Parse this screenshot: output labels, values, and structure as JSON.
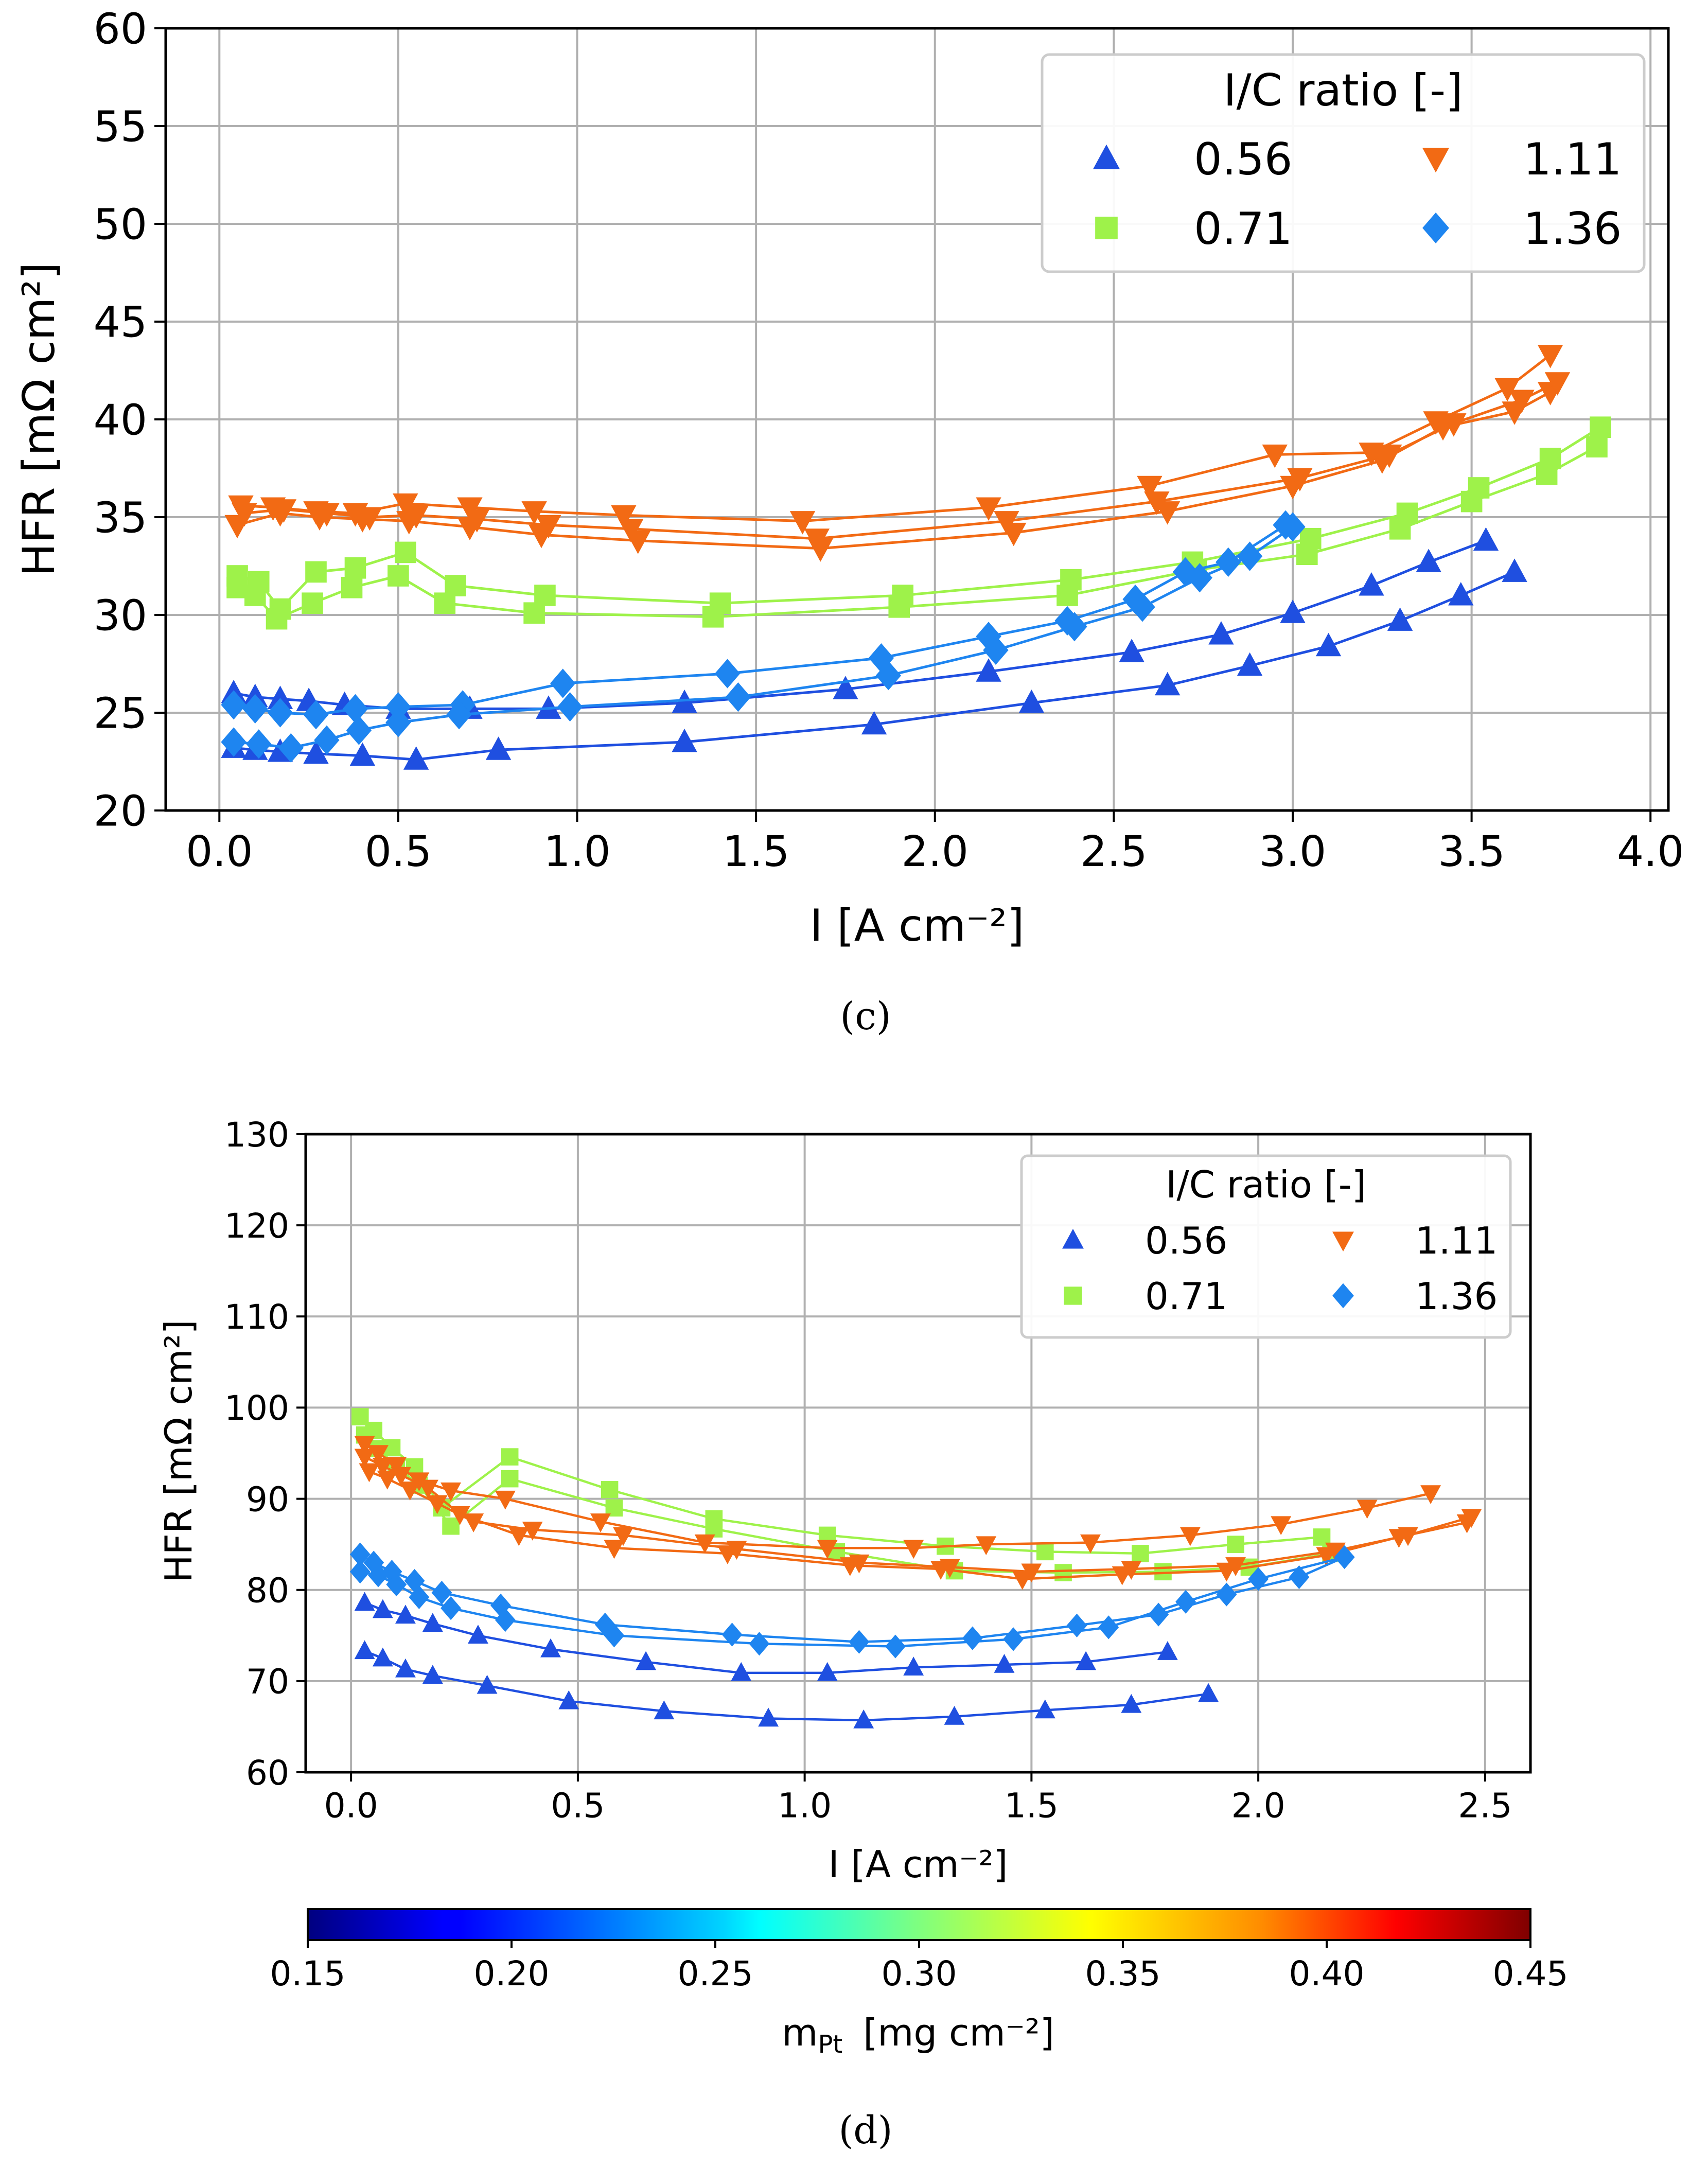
{
  "chart_data": [
    {
      "type": "line",
      "caption": "(c)",
      "xlabel": "I   [A cm⁻²]",
      "ylabel": "HFR   [mΩ cm²]",
      "xlim": [
        -0.15,
        4.05
      ],
      "ylim": [
        20,
        60
      ],
      "xticks": [
        "0.0",
        "0.5",
        "1.0",
        "1.5",
        "2.0",
        "2.5",
        "3.0",
        "3.5",
        "4.0"
      ],
      "yticks": [
        "20",
        "25",
        "30",
        "35",
        "40",
        "45",
        "50",
        "55",
        "60"
      ],
      "grid": true,
      "legend": {
        "title": "I/C ratio [-]",
        "placement": "top-right",
        "entries": [
          {
            "label": "0.56",
            "marker": "triangle-up",
            "color": "#1f4fe0"
          },
          {
            "label": "0.71",
            "marker": "square",
            "color": "#9ef24a"
          },
          {
            "label": "1.11",
            "marker": "triangle-down",
            "color": "#f26a14"
          },
          {
            "label": "1.36",
            "marker": "diamond",
            "color": "#1e85f0"
          }
        ]
      },
      "series": [
        {
          "name": "0.56",
          "marker": "triangle-up",
          "color": "#1f4fe0",
          "x": [
            0.04,
            0.1,
            0.17,
            0.25,
            0.35,
            0.5,
            0.7,
            0.92,
            1.3,
            1.75,
            2.15,
            2.55,
            2.8,
            3.0,
            3.22,
            3.38,
            3.54
          ],
          "y": [
            26.0,
            25.8,
            25.7,
            25.6,
            25.4,
            25.2,
            25.2,
            25.2,
            25.5,
            26.2,
            27.1,
            28.1,
            29.0,
            30.1,
            31.5,
            32.7,
            33.8
          ]
        },
        {
          "name": "0.56",
          "marker": "triangle-up",
          "color": "#1f4fe0",
          "x": [
            0.04,
            0.1,
            0.17,
            0.27,
            0.4,
            0.55,
            0.78,
            1.3,
            1.83,
            2.27,
            2.65,
            2.88,
            3.1,
            3.3,
            3.47,
            3.62
          ],
          "y": [
            23.2,
            23.1,
            23.0,
            22.9,
            22.8,
            22.6,
            23.1,
            23.5,
            24.4,
            25.5,
            26.4,
            27.4,
            28.4,
            29.7,
            31.0,
            32.2
          ]
        },
        {
          "name": "0.71",
          "marker": "square",
          "color": "#9ef24a",
          "x": [
            0.05,
            0.11,
            0.17,
            0.27,
            0.38,
            0.52,
            0.66,
            0.91,
            1.4,
            1.91,
            2.38,
            2.72,
            3.05,
            3.32,
            3.52,
            3.72,
            3.86
          ],
          "y": [
            32.0,
            31.7,
            30.3,
            32.2,
            32.4,
            33.2,
            31.5,
            31.0,
            30.6,
            31.0,
            31.8,
            32.7,
            33.9,
            35.2,
            36.5,
            38.0,
            39.6
          ]
        },
        {
          "name": "0.71",
          "marker": "square",
          "color": "#9ef24a",
          "x": [
            0.05,
            0.1,
            0.16,
            0.26,
            0.37,
            0.5,
            0.63,
            0.88,
            1.38,
            1.9,
            2.37,
            2.73,
            3.04,
            3.3,
            3.5,
            3.71,
            3.85
          ],
          "y": [
            31.4,
            31.0,
            29.8,
            30.6,
            31.4,
            32.0,
            30.6,
            30.1,
            29.9,
            30.4,
            31.0,
            32.3,
            33.1,
            34.4,
            35.8,
            37.2,
            38.6
          ]
        },
        {
          "name": "1.11",
          "marker": "triangle-down",
          "color": "#f26a14",
          "x": [
            0.06,
            0.15,
            0.27,
            0.38,
            0.52,
            0.7,
            0.88,
            1.13,
            1.63,
            2.15,
            2.6,
            2.95,
            3.22,
            3.4,
            3.6,
            3.72
          ],
          "y": [
            35.6,
            35.5,
            35.3,
            35.2,
            35.7,
            35.5,
            35.3,
            35.1,
            34.8,
            35.5,
            36.6,
            38.2,
            38.3,
            39.9,
            41.6,
            43.3
          ]
        },
        {
          "name": "1.11",
          "marker": "triangle-down",
          "color": "#f26a14",
          "x": [
            0.05,
            0.17,
            0.28,
            0.4,
            0.53,
            0.7,
            0.9,
            1.17,
            1.68,
            2.22,
            2.65,
            3.0,
            3.25,
            3.42,
            3.62,
            3.72
          ],
          "y": [
            34.6,
            35.2,
            35.0,
            34.9,
            34.8,
            34.5,
            34.1,
            33.8,
            33.4,
            34.2,
            35.3,
            36.6,
            37.9,
            39.6,
            40.4,
            41.4
          ]
        },
        {
          "name": "1.11",
          "marker": "triangle-down",
          "color": "#f26a14",
          "x": [
            0.07,
            0.18,
            0.3,
            0.42,
            0.55,
            0.72,
            0.92,
            1.15,
            1.67,
            2.2,
            2.62,
            3.02,
            3.27,
            3.45,
            3.64,
            3.74
          ],
          "y": [
            35.2,
            35.4,
            35.2,
            35.0,
            35.1,
            34.9,
            34.6,
            34.4,
            33.9,
            34.8,
            35.8,
            37.0,
            38.2,
            39.8,
            41.0,
            41.9
          ]
        },
        {
          "name": "1.36",
          "marker": "diamond",
          "color": "#1e85f0",
          "x": [
            0.04,
            0.1,
            0.17,
            0.27,
            0.38,
            0.5,
            0.68,
            0.96,
            1.42,
            1.85,
            2.15,
            2.37,
            2.56,
            2.7,
            2.82,
            2.98
          ],
          "y": [
            25.4,
            25.2,
            25.0,
            24.9,
            25.2,
            25.3,
            25.4,
            26.5,
            27.0,
            27.8,
            28.9,
            29.7,
            30.8,
            32.2,
            32.7,
            34.6
          ]
        },
        {
          "name": "1.36",
          "marker": "diamond",
          "color": "#1e85f0",
          "x": [
            0.04,
            0.11,
            0.2,
            0.3,
            0.39,
            0.5,
            0.67,
            0.98,
            1.45,
            1.87,
            2.17,
            2.39,
            2.58,
            2.74,
            2.88,
            3.0
          ],
          "y": [
            23.5,
            23.4,
            23.2,
            23.6,
            24.1,
            24.5,
            24.9,
            25.3,
            25.8,
            26.9,
            28.2,
            29.4,
            30.4,
            31.9,
            33.0,
            34.5
          ]
        }
      ]
    },
    {
      "type": "line",
      "caption": "(d)",
      "xlabel": "I   [A cm⁻²]",
      "ylabel": "HFR   [mΩ cm²]",
      "xlim": [
        -0.1,
        2.6
      ],
      "ylim": [
        60,
        130
      ],
      "xticks": [
        "0.0",
        "0.5",
        "1.0",
        "1.5",
        "2.0",
        "2.5"
      ],
      "yticks": [
        "60",
        "70",
        "80",
        "90",
        "100",
        "110",
        "120",
        "130"
      ],
      "grid": true,
      "legend": {
        "title": "I/C ratio [-]",
        "placement": "top-right",
        "entries": [
          {
            "label": "0.56",
            "marker": "triangle-up",
            "color": "#1f4fe0"
          },
          {
            "label": "0.71",
            "marker": "square",
            "color": "#9ef24a"
          },
          {
            "label": "1.11",
            "marker": "triangle-down",
            "color": "#f26a14"
          },
          {
            "label": "1.36",
            "marker": "diamond",
            "color": "#1e85f0"
          }
        ]
      },
      "colorbar": {
        "label": "m",
        "label_sub": "Pt",
        "label_unit": "[mg cm⁻²]",
        "ticks": [
          "0.15",
          "0.20",
          "0.25",
          "0.30",
          "0.35",
          "0.40",
          "0.45"
        ],
        "range": [
          0.15,
          0.45
        ],
        "colormap": "jet"
      },
      "series": [
        {
          "name": "0.56",
          "marker": "triangle-up",
          "color": "#1f4fe0",
          "x": [
            0.03,
            0.07,
            0.12,
            0.18,
            0.28,
            0.44,
            0.65,
            0.86,
            1.05,
            1.24,
            1.44,
            1.62,
            1.8
          ],
          "y": [
            78.6,
            77.8,
            77.2,
            76.3,
            75.0,
            73.5,
            72.1,
            70.9,
            70.9,
            71.5,
            71.8,
            72.1,
            73.2
          ]
        },
        {
          "name": "0.56",
          "marker": "triangle-up",
          "color": "#1f4fe0",
          "x": [
            0.03,
            0.07,
            0.12,
            0.18,
            0.3,
            0.48,
            0.69,
            0.92,
            1.13,
            1.33,
            1.53,
            1.72,
            1.89
          ],
          "y": [
            73.3,
            72.5,
            71.3,
            70.6,
            69.5,
            67.8,
            66.7,
            65.9,
            65.7,
            66.1,
            66.8,
            67.4,
            68.6
          ]
        },
        {
          "name": "0.71",
          "marker": "square",
          "color": "#9ef24a",
          "x": [
            0.02,
            0.05,
            0.09,
            0.14,
            0.2,
            0.35,
            0.57,
            0.8,
            1.05,
            1.31,
            1.53,
            1.74,
            1.95,
            2.14
          ],
          "y": [
            99.0,
            97.5,
            95.6,
            93.5,
            89.0,
            94.6,
            91.0,
            87.8,
            86.0,
            84.8,
            84.2,
            84.0,
            85.0,
            85.8
          ]
        },
        {
          "name": "0.71",
          "marker": "square",
          "color": "#9ef24a",
          "x": [
            0.03,
            0.06,
            0.1,
            0.15,
            0.22,
            0.35,
            0.58,
            0.8,
            1.07,
            1.33,
            1.57,
            1.79,
            1.98,
            2.16
          ],
          "y": [
            97.0,
            95.5,
            93.5,
            91.5,
            87.0,
            92.2,
            89.0,
            86.7,
            84.2,
            82.1,
            81.9,
            82.0,
            82.5,
            84.0
          ]
        },
        {
          "name": "1.11",
          "marker": "triangle-down",
          "color": "#f26a14",
          "x": [
            0.03,
            0.06,
            0.1,
            0.15,
            0.22,
            0.34,
            0.55,
            0.78,
            1.05,
            1.24,
            1.4,
            1.63,
            1.85,
            2.05,
            2.24,
            2.38
          ],
          "y": [
            96.0,
            95.0,
            93.7,
            92.0,
            90.9,
            90.0,
            87.5,
            85.2,
            84.6,
            84.6,
            85.0,
            85.2,
            86.0,
            87.2,
            89.0,
            90.6
          ]
        },
        {
          "name": "1.11",
          "marker": "triangle-down",
          "color": "#f26a14",
          "x": [
            0.03,
            0.07,
            0.11,
            0.17,
            0.24,
            0.37,
            0.58,
            0.83,
            1.1,
            1.3,
            1.48,
            1.7,
            1.93,
            2.15,
            2.31,
            2.46
          ],
          "y": [
            94.6,
            93.6,
            92.6,
            91.2,
            88.3,
            86.0,
            84.6,
            84.0,
            82.7,
            82.3,
            81.2,
            81.7,
            82.1,
            83.8,
            85.8,
            87.4
          ]
        },
        {
          "name": "1.11",
          "marker": "triangle-down",
          "color": "#f26a14",
          "x": [
            0.04,
            0.08,
            0.13,
            0.19,
            0.27,
            0.4,
            0.6,
            0.85,
            1.12,
            1.32,
            1.5,
            1.72,
            1.95,
            2.17,
            2.33,
            2.47
          ],
          "y": [
            93.0,
            92.2,
            91.0,
            89.5,
            87.5,
            86.6,
            86.0,
            84.5,
            83.0,
            82.5,
            82.0,
            82.3,
            82.7,
            84.3,
            86.0,
            88.0
          ]
        },
        {
          "name": "1.36",
          "marker": "diamond",
          "color": "#1e85f0",
          "x": [
            0.02,
            0.05,
            0.09,
            0.14,
            0.2,
            0.33,
            0.56,
            0.84,
            1.12,
            1.37,
            1.6,
            1.78,
            1.93,
            2.09,
            2.19
          ],
          "y": [
            83.9,
            83.0,
            82.0,
            81.0,
            79.7,
            78.3,
            76.2,
            75.1,
            74.3,
            74.7,
            76.1,
            77.3,
            79.5,
            81.4,
            83.6
          ]
        },
        {
          "name": "1.36",
          "marker": "diamond",
          "color": "#1e85f0",
          "x": [
            0.02,
            0.06,
            0.1,
            0.15,
            0.22,
            0.34,
            0.58,
            0.9,
            1.2,
            1.46,
            1.67,
            1.84,
            2.0,
            2.19
          ],
          "y": [
            82.0,
            81.6,
            80.6,
            79.2,
            78.0,
            76.7,
            75.0,
            74.1,
            73.8,
            74.6,
            75.9,
            78.7,
            81.2,
            83.6
          ]
        }
      ]
    }
  ]
}
